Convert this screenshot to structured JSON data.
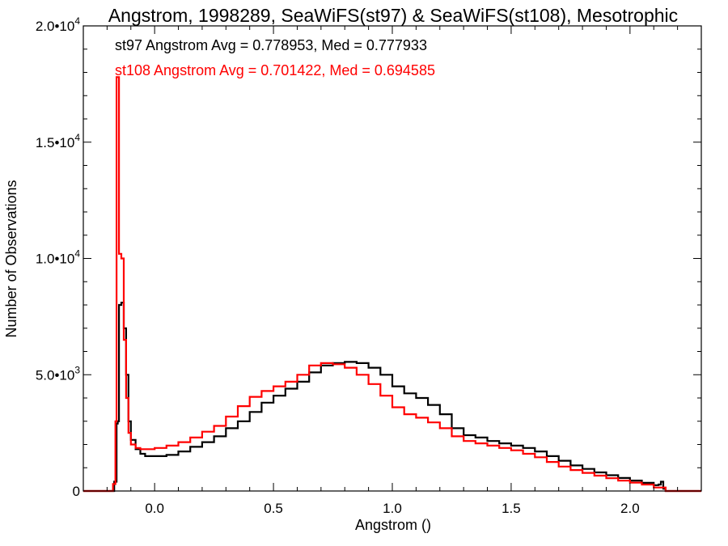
{
  "chart_data": {
    "type": "line",
    "title": "Angstrom, 1998289, SeaWiFS(st97) & SeaWiFS(st108), Mesotrophic",
    "xlabel": "Angstrom ()",
    "ylabel": "Number of Observations",
    "xlim": [
      -0.3,
      2.3
    ],
    "ylim": [
      0,
      20000
    ],
    "x_ticks": [
      {
        "value": 0.0,
        "label": "0.0"
      },
      {
        "value": 0.5,
        "label": "0.5"
      },
      {
        "value": 1.0,
        "label": "1.0"
      },
      {
        "value": 1.5,
        "label": "1.5"
      },
      {
        "value": 2.0,
        "label": "2.0"
      }
    ],
    "y_ticks": [
      {
        "value": 0,
        "label": "0",
        "exp": ""
      },
      {
        "value": 5000,
        "label": "5.0•10",
        "exp": "3"
      },
      {
        "value": 10000,
        "label": "1.0•10",
        "exp": "4"
      },
      {
        "value": 15000,
        "label": "1.5•10",
        "exp": "4"
      },
      {
        "value": 20000,
        "label": "2.0•10",
        "exp": "4"
      }
    ],
    "grid": false,
    "annotations": [
      {
        "text": "st97 Angstrom Avg = 0.778953, Med = 0.777933",
        "color": "#000000"
      },
      {
        "text": "st108 Angstrom Avg = 0.701422, Med = 0.694585",
        "color": "#ff0000"
      }
    ],
    "series": [
      {
        "color": "#000000",
        "points": [
          [
            -0.3,
            0
          ],
          [
            -0.18,
            0
          ],
          [
            -0.17,
            400
          ],
          [
            -0.16,
            2900
          ],
          [
            -0.155,
            3000
          ],
          [
            -0.15,
            8000
          ],
          [
            -0.14,
            8100
          ],
          [
            -0.13,
            7000
          ],
          [
            -0.12,
            5000
          ],
          [
            -0.11,
            3000
          ],
          [
            -0.1,
            2200
          ],
          [
            -0.08,
            1800
          ],
          [
            -0.06,
            1600
          ],
          [
            -0.04,
            1500
          ],
          [
            0.0,
            1500
          ],
          [
            0.05,
            1550
          ],
          [
            0.1,
            1700
          ],
          [
            0.15,
            1900
          ],
          [
            0.2,
            2100
          ],
          [
            0.25,
            2350
          ],
          [
            0.3,
            2700
          ],
          [
            0.35,
            3000
          ],
          [
            0.4,
            3400
          ],
          [
            0.45,
            3800
          ],
          [
            0.5,
            4100
          ],
          [
            0.55,
            4400
          ],
          [
            0.6,
            4700
          ],
          [
            0.65,
            5100
          ],
          [
            0.7,
            5400
          ],
          [
            0.75,
            5500
          ],
          [
            0.8,
            5550
          ],
          [
            0.85,
            5500
          ],
          [
            0.9,
            5300
          ],
          [
            0.95,
            5000
          ],
          [
            1.0,
            4500
          ],
          [
            1.05,
            4200
          ],
          [
            1.1,
            4000
          ],
          [
            1.15,
            3700
          ],
          [
            1.2,
            3300
          ],
          [
            1.25,
            2700
          ],
          [
            1.3,
            2400
          ],
          [
            1.35,
            2300
          ],
          [
            1.4,
            2150
          ],
          [
            1.45,
            2050
          ],
          [
            1.5,
            1950
          ],
          [
            1.55,
            1850
          ],
          [
            1.6,
            1700
          ],
          [
            1.65,
            1500
          ],
          [
            1.7,
            1300
          ],
          [
            1.75,
            1100
          ],
          [
            1.8,
            950
          ],
          [
            1.85,
            800
          ],
          [
            1.9,
            680
          ],
          [
            1.95,
            560
          ],
          [
            2.0,
            450
          ],
          [
            2.05,
            350
          ],
          [
            2.1,
            250
          ],
          [
            2.12,
            280
          ],
          [
            2.13,
            400
          ],
          [
            2.14,
            100
          ],
          [
            2.15,
            0
          ],
          [
            2.3,
            0
          ]
        ]
      },
      {
        "color": "#ff0000",
        "points": [
          [
            -0.3,
            0
          ],
          [
            -0.18,
            0
          ],
          [
            -0.175,
            300
          ],
          [
            -0.165,
            3000
          ],
          [
            -0.16,
            17800
          ],
          [
            -0.15,
            10200
          ],
          [
            -0.14,
            10000
          ],
          [
            -0.13,
            6500
          ],
          [
            -0.12,
            4000
          ],
          [
            -0.11,
            2500
          ],
          [
            -0.1,
            2000
          ],
          [
            -0.08,
            1850
          ],
          [
            -0.06,
            1800
          ],
          [
            0.0,
            1850
          ],
          [
            0.05,
            1950
          ],
          [
            0.1,
            2100
          ],
          [
            0.15,
            2300
          ],
          [
            0.2,
            2550
          ],
          [
            0.25,
            2800
          ],
          [
            0.3,
            3200
          ],
          [
            0.35,
            3650
          ],
          [
            0.4,
            4050
          ],
          [
            0.45,
            4300
          ],
          [
            0.5,
            4500
          ],
          [
            0.55,
            4700
          ],
          [
            0.6,
            5000
          ],
          [
            0.65,
            5400
          ],
          [
            0.7,
            5500
          ],
          [
            0.75,
            5450
          ],
          [
            0.8,
            5300
          ],
          [
            0.85,
            5000
          ],
          [
            0.9,
            4600
          ],
          [
            0.95,
            4100
          ],
          [
            1.0,
            3600
          ],
          [
            1.05,
            3300
          ],
          [
            1.1,
            3150
          ],
          [
            1.15,
            2950
          ],
          [
            1.2,
            2700
          ],
          [
            1.25,
            2350
          ],
          [
            1.3,
            2150
          ],
          [
            1.35,
            2050
          ],
          [
            1.4,
            1950
          ],
          [
            1.45,
            1850
          ],
          [
            1.5,
            1750
          ],
          [
            1.55,
            1600
          ],
          [
            1.6,
            1450
          ],
          [
            1.65,
            1250
          ],
          [
            1.7,
            1050
          ],
          [
            1.75,
            900
          ],
          [
            1.8,
            780
          ],
          [
            1.85,
            660
          ],
          [
            1.9,
            550
          ],
          [
            1.95,
            450
          ],
          [
            2.0,
            360
          ],
          [
            2.05,
            280
          ],
          [
            2.1,
            150
          ],
          [
            2.15,
            0
          ],
          [
            2.3,
            0
          ]
        ]
      }
    ]
  }
}
